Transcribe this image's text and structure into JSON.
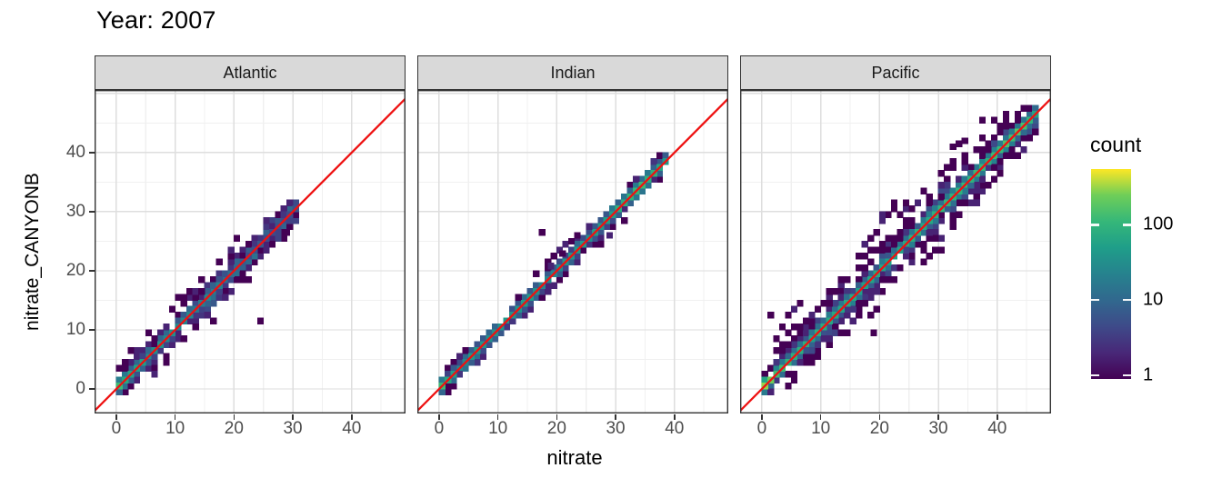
{
  "title": "Year: 2007",
  "chart_data": {
    "type": "heatmap",
    "subtype": "faceted 2d-bin scatter (geom_bin2d) with identity line",
    "title": "Year: 2007",
    "xlabel": "nitrate",
    "ylabel": "nitrate_CANYONB",
    "x_ticks": [
      0,
      10,
      20,
      30,
      40
    ],
    "y_ticks": [
      0,
      10,
      20,
      30,
      40
    ],
    "xlim": [
      -3.7,
      49.15
    ],
    "ylim": [
      -4.15,
      50.6
    ],
    "grid_major_breaks": [
      0,
      10,
      20,
      30,
      40,
      50
    ],
    "grid_minor_breaks": [
      5,
      15,
      25,
      35,
      45
    ],
    "bin_size": 1,
    "identity_line_color": "#ee1111",
    "legend": {
      "title": "count",
      "ticks": [
        100,
        10,
        1
      ],
      "log_max": 2.74,
      "log_min": -0.046
    },
    "viridis": [
      "#440154",
      "#482878",
      "#3e4a89",
      "#31688e",
      "#26828e",
      "#1f9e89",
      "#35b779",
      "#6ece58",
      "#fde725"
    ],
    "facets": [
      {
        "name": "Atlantic",
        "max": 30.5,
        "seed": 7,
        "sigma": 1.5,
        "n_scatter": 240,
        "diag_profile": [
          [
            0,
            150
          ],
          [
            1,
            85
          ],
          [
            2,
            55
          ],
          [
            4,
            45
          ],
          [
            7,
            38
          ],
          [
            10,
            28
          ],
          [
            13,
            20
          ],
          [
            16,
            26
          ],
          [
            18,
            14
          ],
          [
            20,
            9
          ],
          [
            22,
            7
          ],
          [
            24,
            6
          ],
          [
            26,
            5
          ],
          [
            28,
            5
          ],
          [
            30,
            6
          ]
        ],
        "outliers": [
          [
            24.5,
            11.5
          ],
          [
            25.5,
            23.5
          ],
          [
            12.5,
            16.5
          ],
          [
            13.5,
            16.5
          ],
          [
            11.5,
            15.5
          ],
          [
            14.5,
            16.5
          ],
          [
            17.5,
            21.5
          ],
          [
            19.5,
            23.5
          ],
          [
            29,
            26.5
          ],
          [
            20.5,
            25.5
          ],
          [
            9.5,
            13.5
          ],
          [
            5.5,
            9.5
          ],
          [
            2.5,
            6.5
          ],
          [
            16.5,
            11.5
          ],
          [
            15.5,
            12.5
          ],
          [
            13.5,
            10.5
          ],
          [
            22.5,
            18.5
          ],
          [
            6.5,
            2.5
          ],
          [
            8.5,
            4.5
          ],
          [
            18.5,
            15.5
          ]
        ]
      },
      {
        "name": "Indian",
        "max": 38,
        "seed": 13,
        "sigma": 0.85,
        "n_scatter": 130,
        "diag_profile": [
          [
            0,
            110
          ],
          [
            1,
            60
          ],
          [
            3,
            35
          ],
          [
            6,
            40
          ],
          [
            9,
            35
          ],
          [
            12,
            40
          ],
          [
            15,
            45
          ],
          [
            18,
            25
          ],
          [
            20,
            30
          ],
          [
            22,
            45
          ],
          [
            24,
            40
          ],
          [
            26,
            45
          ],
          [
            28,
            55
          ],
          [
            30,
            75
          ],
          [
            32,
            95
          ],
          [
            34,
            110
          ],
          [
            36,
            90
          ],
          [
            38,
            50
          ]
        ],
        "outliers": [
          [
            17.5,
            26.5
          ],
          [
            29,
            26
          ],
          [
            21.5,
            24.5
          ],
          [
            16.5,
            19.5
          ],
          [
            19.5,
            22.5
          ],
          [
            23.5,
            26
          ],
          [
            25.5,
            27.5
          ],
          [
            27.5,
            24.5
          ],
          [
            31.5,
            28.5
          ],
          [
            18.5,
            21.5
          ],
          [
            20.5,
            23.5
          ],
          [
            22.5,
            25
          ],
          [
            19,
            20.8
          ],
          [
            21,
            22.9
          ]
        ]
      },
      {
        "name": "Pacific",
        "max": 46.5,
        "seed": 29,
        "sigma": 2.3,
        "n_scatter": 560,
        "diag_profile": [
          [
            0,
            330
          ],
          [
            1,
            200
          ],
          [
            2,
            120
          ],
          [
            4,
            90
          ],
          [
            7,
            75
          ],
          [
            10,
            65
          ],
          [
            14,
            60
          ],
          [
            18,
            65
          ],
          [
            22,
            70
          ],
          [
            26,
            75
          ],
          [
            30,
            85
          ],
          [
            34,
            95
          ],
          [
            38,
            110
          ],
          [
            41,
            140
          ],
          [
            43,
            150
          ],
          [
            45,
            110
          ],
          [
            46,
            70
          ]
        ],
        "outliers": [
          [
            34.5,
            42
          ],
          [
            32.5,
            41
          ],
          [
            33.5,
            41.5
          ],
          [
            19,
            9.5
          ],
          [
            18.5,
            12.5
          ],
          [
            1.5,
            12.5
          ],
          [
            4.5,
            12.5
          ],
          [
            2.5,
            8.5
          ],
          [
            6.5,
            14.5
          ],
          [
            17.5,
            24.5
          ],
          [
            19.5,
            26.5
          ],
          [
            20.5,
            28.5
          ],
          [
            21.5,
            29.5
          ],
          [
            22.5,
            30.5
          ],
          [
            23.5,
            29.5
          ],
          [
            24.5,
            30.5
          ],
          [
            25.5,
            30.5
          ],
          [
            26.5,
            31.5
          ],
          [
            18.5,
            25.5
          ],
          [
            27.5,
            33.5
          ],
          [
            16.5,
            22.5
          ],
          [
            20.5,
            29.5
          ],
          [
            22.5,
            31.5
          ],
          [
            24.5,
            31.5
          ],
          [
            3.5,
            10.5
          ],
          [
            5.5,
            13.5
          ],
          [
            36.5,
            31.5
          ],
          [
            38.5,
            34.5
          ]
        ]
      }
    ]
  },
  "theme": {
    "panel_bg": "#ffffff",
    "grid_major": "#dedede",
    "grid_minor": "#f0f0f0",
    "panel_border": "#333333",
    "strip_bg": "#d9d9d9",
    "strip_text": "#1a1a1a",
    "tick_color": "#333333",
    "tick_label_color": "#4d4d4d"
  }
}
